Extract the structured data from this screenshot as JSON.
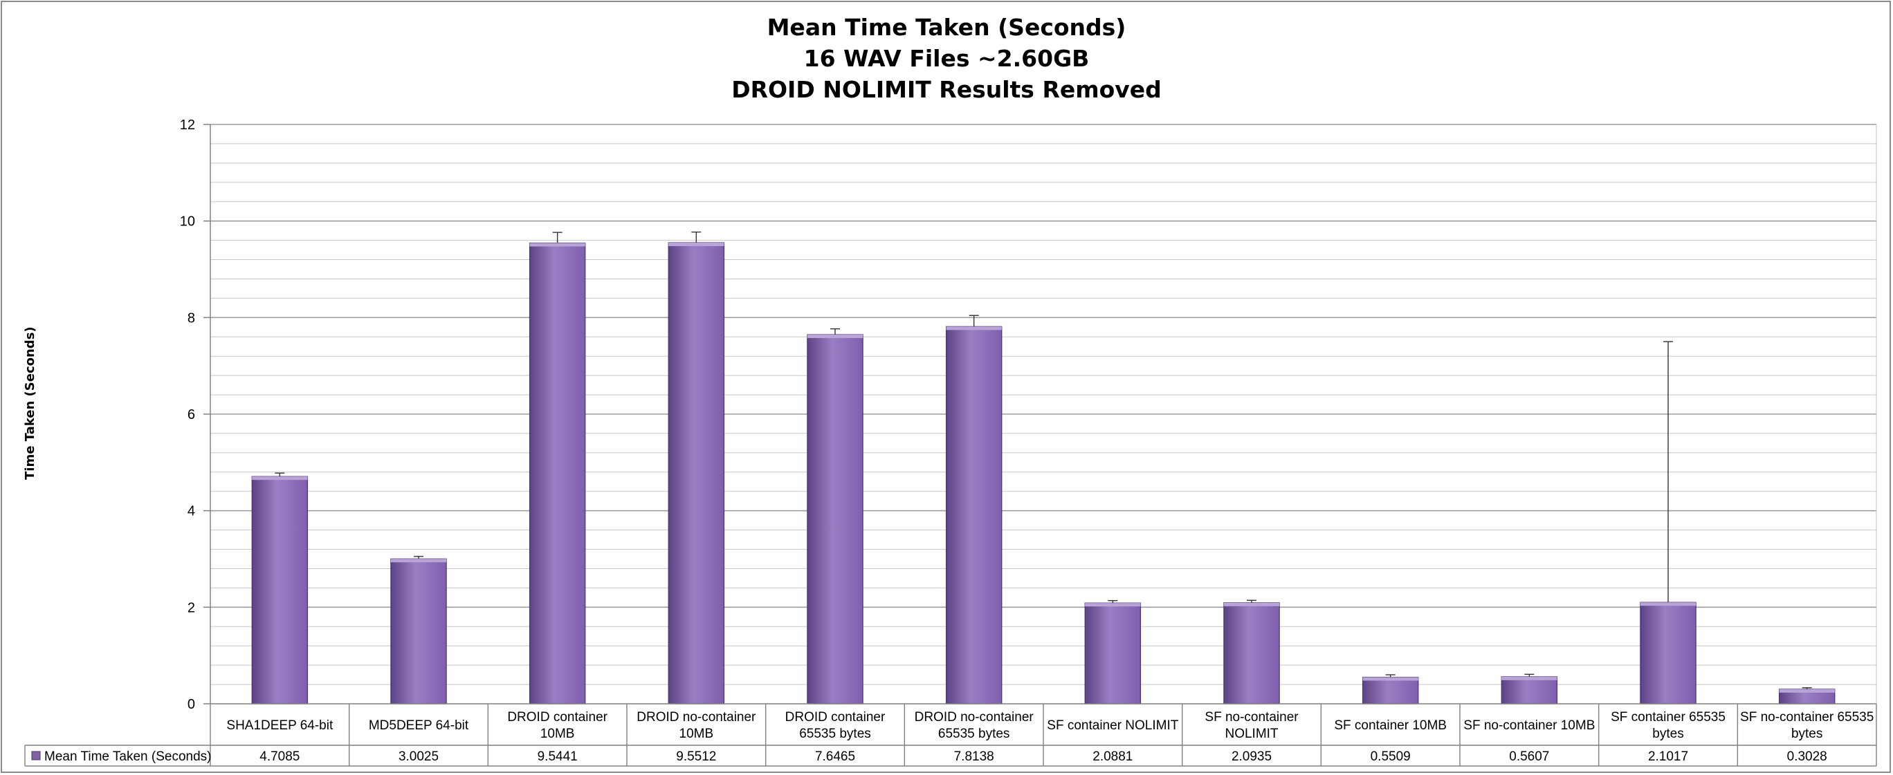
{
  "chart_data": {
    "type": "bar",
    "title": [
      "Mean Time Taken (Seconds)",
      "16 WAV Files ~2.60GB",
      "DROID NOLIMIT Results Removed"
    ],
    "ylabel": "Time Taken (Seconds)",
    "ylim": [
      0,
      12
    ],
    "yticks": [
      0,
      2,
      4,
      6,
      8,
      10,
      12
    ],
    "grid": true,
    "categories": [
      [
        "SHA1DEEP 64-bit"
      ],
      [
        "MD5DEEP 64-bit"
      ],
      [
        "DROID container",
        "10MB"
      ],
      [
        "DROID no-container",
        "10MB"
      ],
      [
        "DROID container",
        "65535 bytes"
      ],
      [
        "DROID no-container",
        "65535 bytes"
      ],
      [
        "SF container NOLIMIT"
      ],
      [
        "SF no-container",
        "NOLIMIT"
      ],
      [
        "SF container 10MB"
      ],
      [
        "SF no-container 10MB"
      ],
      [
        "SF container 65535",
        "bytes"
      ],
      [
        "SF no-container 65535",
        "bytes"
      ]
    ],
    "series": [
      {
        "name": "Mean Time Taken (Seconds)",
        "values": [
          4.7085,
          3.0025,
          9.5441,
          9.5512,
          7.6465,
          7.8138,
          2.0881,
          2.0935,
          0.5509,
          0.5607,
          2.1017,
          0.3028
        ],
        "value_labels": [
          "4.7085",
          "3.0025",
          "9.5441",
          "9.5512",
          "7.6465",
          "7.8138",
          "2.0881",
          "2.0935",
          "0.5509",
          "0.5607",
          "2.1017",
          "0.3028"
        ],
        "error_plus": [
          0.07,
          0.05,
          0.22,
          0.22,
          0.12,
          0.23,
          0.05,
          0.05,
          0.05,
          0.05,
          5.4,
          0.03
        ],
        "color": "#8064a2"
      }
    ],
    "legend": "data-table",
    "colors": {
      "bar_light": "#9a7fc4",
      "bar_mid": "#7e5fae",
      "bar_dark": "#5c4385",
      "grid": "#c8c8c8"
    }
  }
}
